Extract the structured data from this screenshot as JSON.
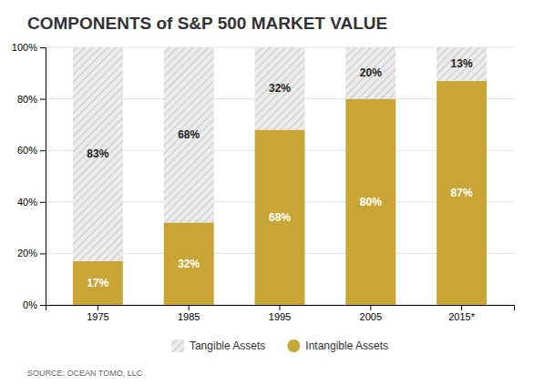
{
  "chart_data": {
    "type": "bar",
    "stacked": true,
    "title": "COMPONENTS of S&P 500 MARKET VALUE",
    "categories": [
      "1975",
      "1985",
      "1995",
      "2005",
      "2015*"
    ],
    "series": [
      {
        "name": "Intangible Assets",
        "color": "#C9A535",
        "values": [
          17,
          32,
          68,
          80,
          87
        ],
        "value_labels": [
          "17%",
          "32%",
          "68%",
          "80%",
          "87%"
        ]
      },
      {
        "name": "Tangible Assets",
        "color": "#EBEBEB",
        "values": [
          83,
          68,
          32,
          20,
          13
        ],
        "value_labels": [
          "83%",
          "68%",
          "32%",
          "20%",
          "13%"
        ]
      }
    ],
    "data_labels": true,
    "ylim": [
      0,
      100
    ],
    "yticks": [
      {
        "value": 0,
        "label": "0%"
      },
      {
        "value": 20,
        "label": "20%"
      },
      {
        "value": 40,
        "label": "40%"
      },
      {
        "value": 60,
        "label": "60%"
      },
      {
        "value": 80,
        "label": "80%"
      },
      {
        "value": 100,
        "label": "100%"
      }
    ],
    "grid": true,
    "legend": "bottom",
    "annotations": [
      "SOURCE: OCEAN TOMO, LLC"
    ]
  }
}
